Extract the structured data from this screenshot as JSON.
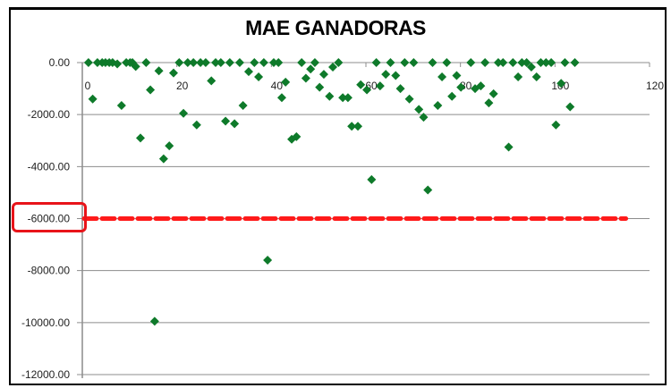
{
  "chart_data": {
    "type": "scatter",
    "title": "MAE GANADORAS",
    "xlabel": "",
    "ylabel": "",
    "xlim": [
      0,
      120
    ],
    "ylim": [
      -12000,
      0
    ],
    "x_ticks": [
      "0",
      "20",
      "40",
      "60",
      "80",
      "100",
      "120"
    ],
    "y_ticks": [
      "0.00",
      "-2000.00",
      "-4000.00",
      "-6000.00",
      "-8000.00",
      "-10000.00",
      "-12000.00"
    ],
    "grid": "horizontal",
    "legend": null,
    "marker_color": "#0e7a2a",
    "threshold": {
      "value": -6000,
      "x_range": [
        0,
        115
      ],
      "style": "dashed",
      "color": "#ff1a1a"
    },
    "highlight_label": "-6000.00",
    "highlight_color": "#e8141a",
    "series": [
      {
        "name": "MAE",
        "points": [
          [
            1.3,
            0
          ],
          [
            2.2,
            -1400
          ],
          [
            3.2,
            0
          ],
          [
            4.2,
            0
          ],
          [
            4.9,
            0
          ],
          [
            5.7,
            0
          ],
          [
            6.4,
            0
          ],
          [
            7.4,
            -50
          ],
          [
            8.3,
            -1650
          ],
          [
            9.3,
            0
          ],
          [
            10.1,
            0
          ],
          [
            10.6,
            0
          ],
          [
            11.3,
            -150
          ],
          [
            12.3,
            -2900
          ],
          [
            13.5,
            0
          ],
          [
            14.4,
            -1050
          ],
          [
            15.3,
            -9950
          ],
          [
            16.2,
            -320
          ],
          [
            17.2,
            -3700
          ],
          [
            18.4,
            -3200
          ],
          [
            19.3,
            -400
          ],
          [
            20.5,
            0
          ],
          [
            21.4,
            -1950
          ],
          [
            22.3,
            0
          ],
          [
            23.5,
            0
          ],
          [
            24.2,
            -2400
          ],
          [
            25.0,
            0
          ],
          [
            26.1,
            0
          ],
          [
            27.3,
            -700
          ],
          [
            28.2,
            0
          ],
          [
            29.3,
            0
          ],
          [
            30.3,
            -2250
          ],
          [
            31.2,
            0
          ],
          [
            32.2,
            -2350
          ],
          [
            33.3,
            0
          ],
          [
            34.0,
            -1650
          ],
          [
            35.2,
            -350
          ],
          [
            36.4,
            0
          ],
          [
            37.3,
            -550
          ],
          [
            38.4,
            0
          ],
          [
            39.2,
            -7600
          ],
          [
            40.5,
            0
          ],
          [
            41.5,
            0
          ],
          [
            42.2,
            -1350
          ],
          [
            43.0,
            -750
          ],
          [
            44.3,
            -2950
          ],
          [
            45.3,
            -2850
          ],
          [
            46.4,
            0
          ],
          [
            47.3,
            -600
          ],
          [
            48.3,
            -250
          ],
          [
            49.2,
            0
          ],
          [
            50.2,
            -950
          ],
          [
            51.1,
            -450
          ],
          [
            52.3,
            -1300
          ],
          [
            53.0,
            -170
          ],
          [
            54.2,
            0
          ],
          [
            55.1,
            -1350
          ],
          [
            56.2,
            -1350
          ],
          [
            57.0,
            -2450
          ],
          [
            58.3,
            -2450
          ],
          [
            58.9,
            -850
          ],
          [
            60.2,
            -1050
          ],
          [
            61.2,
            -4500
          ],
          [
            62.2,
            0
          ],
          [
            63.0,
            -900
          ],
          [
            64.2,
            -450
          ],
          [
            65.2,
            0
          ],
          [
            66.3,
            -500
          ],
          [
            67.3,
            -1000
          ],
          [
            68.2,
            0
          ],
          [
            69.2,
            -1400
          ],
          [
            70.1,
            0
          ],
          [
            71.2,
            -1800
          ],
          [
            72.2,
            -2100
          ],
          [
            73.1,
            -4900
          ],
          [
            74.1,
            0
          ],
          [
            75.2,
            -1650
          ],
          [
            76.1,
            -550
          ],
          [
            77.1,
            0
          ],
          [
            78.2,
            -1300
          ],
          [
            79.2,
            -500
          ],
          [
            80.1,
            -950
          ],
          [
            82.2,
            0
          ],
          [
            83.1,
            -1000
          ],
          [
            84.3,
            -900
          ],
          [
            85.2,
            0
          ],
          [
            86.0,
            -1550
          ],
          [
            87.0,
            -1200
          ],
          [
            88.0,
            0
          ],
          [
            89.0,
            0
          ],
          [
            90.2,
            -3250
          ],
          [
            91.1,
            0
          ],
          [
            92.2,
            -550
          ],
          [
            93.0,
            0
          ],
          [
            94.0,
            0
          ],
          [
            95.0,
            -170
          ],
          [
            96.1,
            -550
          ],
          [
            97.0,
            0
          ],
          [
            98.1,
            0
          ],
          [
            99.2,
            0
          ],
          [
            100.2,
            -2400
          ],
          [
            101.3,
            -800
          ],
          [
            102.1,
            0
          ],
          [
            103.2,
            -1700
          ],
          [
            104.2,
            0
          ]
        ]
      }
    ]
  }
}
